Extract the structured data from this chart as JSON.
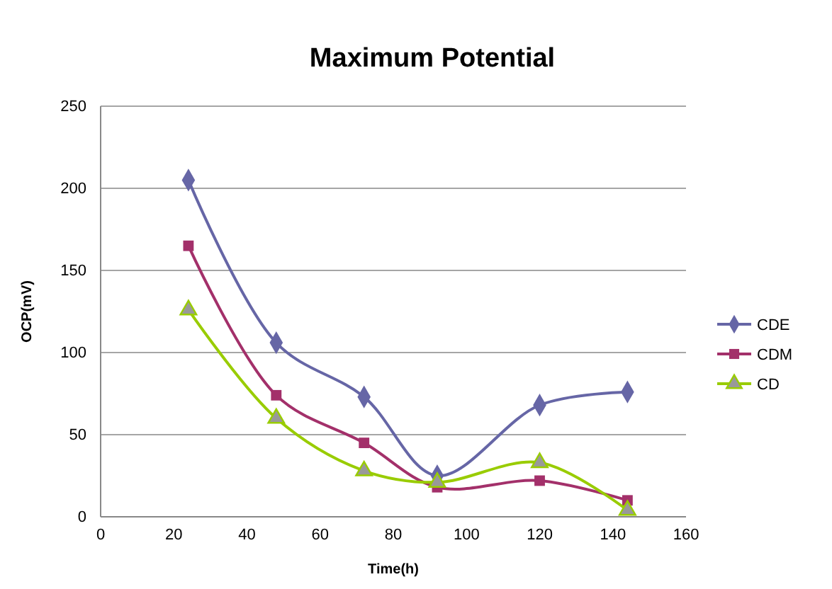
{
  "chart_data": {
    "type": "line",
    "title": "Maximum Potential",
    "xlabel": "Time(h)",
    "ylabel": "OCP(mV)",
    "x": [
      24,
      48,
      72,
      92,
      120,
      144
    ],
    "series": [
      {
        "name": "CDE",
        "color": "#6666a6",
        "marker": "diamond",
        "values": [
          205,
          106,
          73,
          25,
          68,
          76
        ]
      },
      {
        "name": "CDM",
        "color": "#a3306a",
        "marker": "square",
        "values": [
          165,
          74,
          45,
          18,
          22,
          10
        ]
      },
      {
        "name": "CD",
        "color": "#99cc00",
        "marker": "triangle",
        "values": [
          126,
          60,
          28,
          21,
          33,
          4
        ]
      }
    ],
    "xlim": [
      0,
      160
    ],
    "xticks": [
      0,
      20,
      40,
      60,
      80,
      100,
      120,
      140,
      160
    ],
    "ylim": [
      0,
      250
    ],
    "yticks": [
      0,
      50,
      100,
      150,
      200,
      250
    ],
    "grid": "y",
    "legend": "right"
  }
}
